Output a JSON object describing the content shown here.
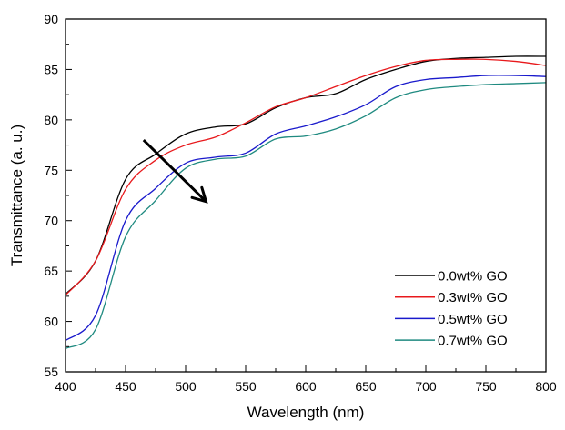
{
  "chart_data": {
    "type": "line",
    "title": "",
    "xlabel": "Wavelength (nm)",
    "ylabel": "Transmittance (a. u.)",
    "xlim": [
      400,
      800
    ],
    "ylim": [
      55,
      90
    ],
    "xticks": [
      400,
      450,
      500,
      550,
      600,
      650,
      700,
      750,
      800
    ],
    "yticks": [
      55,
      60,
      65,
      70,
      75,
      80,
      85,
      90
    ],
    "x_minor_step": 25,
    "y_minor_step": 2.5,
    "grid": false,
    "legend_position": "bottom-right",
    "x": [
      400,
      425,
      450,
      475,
      500,
      525,
      550,
      575,
      600,
      625,
      650,
      675,
      700,
      725,
      750,
      775,
      800
    ],
    "series": [
      {
        "name": "0.0wt% GO",
        "color": "#000000",
        "values": [
          62.7,
          66.0,
          74.1,
          76.6,
          78.6,
          79.3,
          79.6,
          81.2,
          82.2,
          82.6,
          84.0,
          85.0,
          85.8,
          86.1,
          86.2,
          86.3,
          86.3
        ]
      },
      {
        "name": "0.3wt% GO",
        "color": "#e8191c",
        "values": [
          62.6,
          66.0,
          73.1,
          76.0,
          77.5,
          78.3,
          79.7,
          81.3,
          82.2,
          83.3,
          84.4,
          85.3,
          85.9,
          86.0,
          86.0,
          85.8,
          85.4
        ]
      },
      {
        "name": "0.5wt% GO",
        "color": "#1a1acc",
        "values": [
          58.1,
          60.6,
          70.0,
          73.2,
          75.7,
          76.3,
          76.7,
          78.6,
          79.4,
          80.3,
          81.5,
          83.3,
          84.0,
          84.2,
          84.4,
          84.4,
          84.3
        ]
      },
      {
        "name": "0.7wt% GO",
        "color": "#1f8a80",
        "values": [
          57.3,
          59.2,
          68.4,
          72.0,
          75.2,
          76.1,
          76.4,
          78.1,
          78.4,
          79.1,
          80.4,
          82.2,
          83.0,
          83.3,
          83.5,
          83.6,
          83.7
        ]
      }
    ],
    "annotations": [
      {
        "type": "arrow",
        "description": "trend arrow indicating decreasing transmittance with GO content",
        "from": [
          465,
          78.0
        ],
        "to": [
          517,
          71.9
        ],
        "color": "#000000"
      }
    ]
  }
}
